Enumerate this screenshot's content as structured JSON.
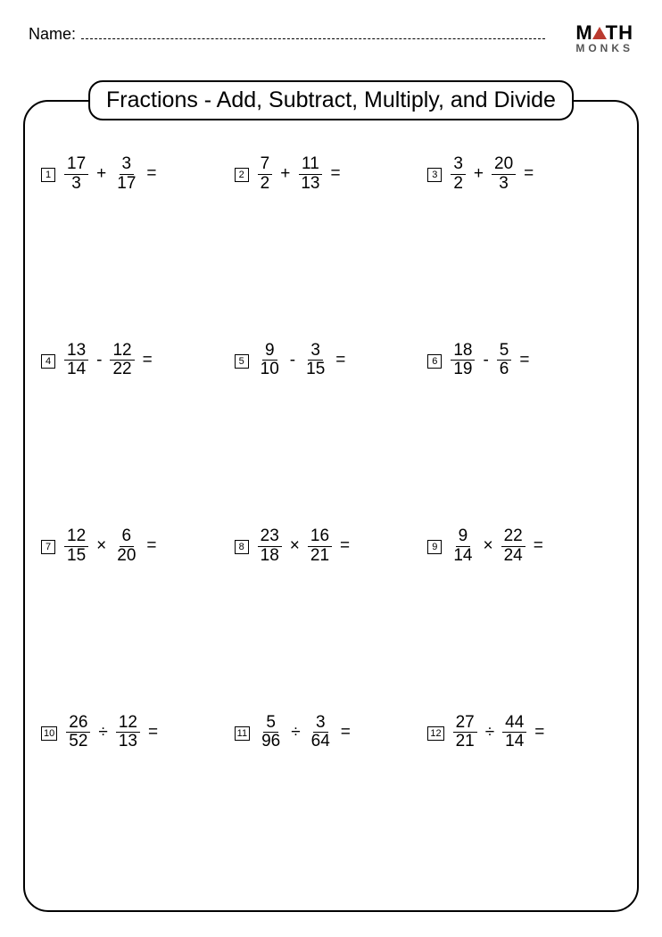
{
  "header": {
    "name_label": "Name:",
    "logo_top_left": "M",
    "logo_top_right": "TH",
    "logo_bottom": "MONKS",
    "triangle_color": "#ba3a2f"
  },
  "worksheet": {
    "title": "Fractions - Add, Subtract, Multiply, and Divide",
    "border_color": "#000000",
    "background_color": "#ffffff",
    "title_fontsize": 25,
    "problem_fontsize": 19,
    "grid": {
      "cols": 3,
      "rows": 4
    },
    "problems": [
      {
        "n": "1",
        "a_num": "17",
        "a_den": "3",
        "op": "+",
        "b_num": "3",
        "b_den": "17"
      },
      {
        "n": "2",
        "a_num": "7",
        "a_den": "2",
        "op": "+",
        "b_num": "11",
        "b_den": "13"
      },
      {
        "n": "3",
        "a_num": "3",
        "a_den": "2",
        "op": "+",
        "b_num": "20",
        "b_den": "3"
      },
      {
        "n": "4",
        "a_num": "13",
        "a_den": "14",
        "op": "-",
        "b_num": "12",
        "b_den": "22"
      },
      {
        "n": "5",
        "a_num": "9",
        "a_den": "10",
        "op": "-",
        "b_num": "3",
        "b_den": "15"
      },
      {
        "n": "6",
        "a_num": "18",
        "a_den": "19",
        "op": "-",
        "b_num": "5",
        "b_den": "6"
      },
      {
        "n": "7",
        "a_num": "12",
        "a_den": "15",
        "op": "×",
        "b_num": "6",
        "b_den": "20"
      },
      {
        "n": "8",
        "a_num": "23",
        "a_den": "18",
        "op": "×",
        "b_num": "16",
        "b_den": "21"
      },
      {
        "n": "9",
        "a_num": "9",
        "a_den": "14",
        "op": "×",
        "b_num": "22",
        "b_den": "24"
      },
      {
        "n": "10",
        "a_num": "26",
        "a_den": "52",
        "op": "÷",
        "b_num": "12",
        "b_den": "13"
      },
      {
        "n": "11",
        "a_num": "5",
        "a_den": "96",
        "op": "÷",
        "b_num": "3",
        "b_den": "64"
      },
      {
        "n": "12",
        "a_num": "27",
        "a_den": "21",
        "op": "÷",
        "b_num": "44",
        "b_den": "14"
      }
    ],
    "equals": "="
  }
}
